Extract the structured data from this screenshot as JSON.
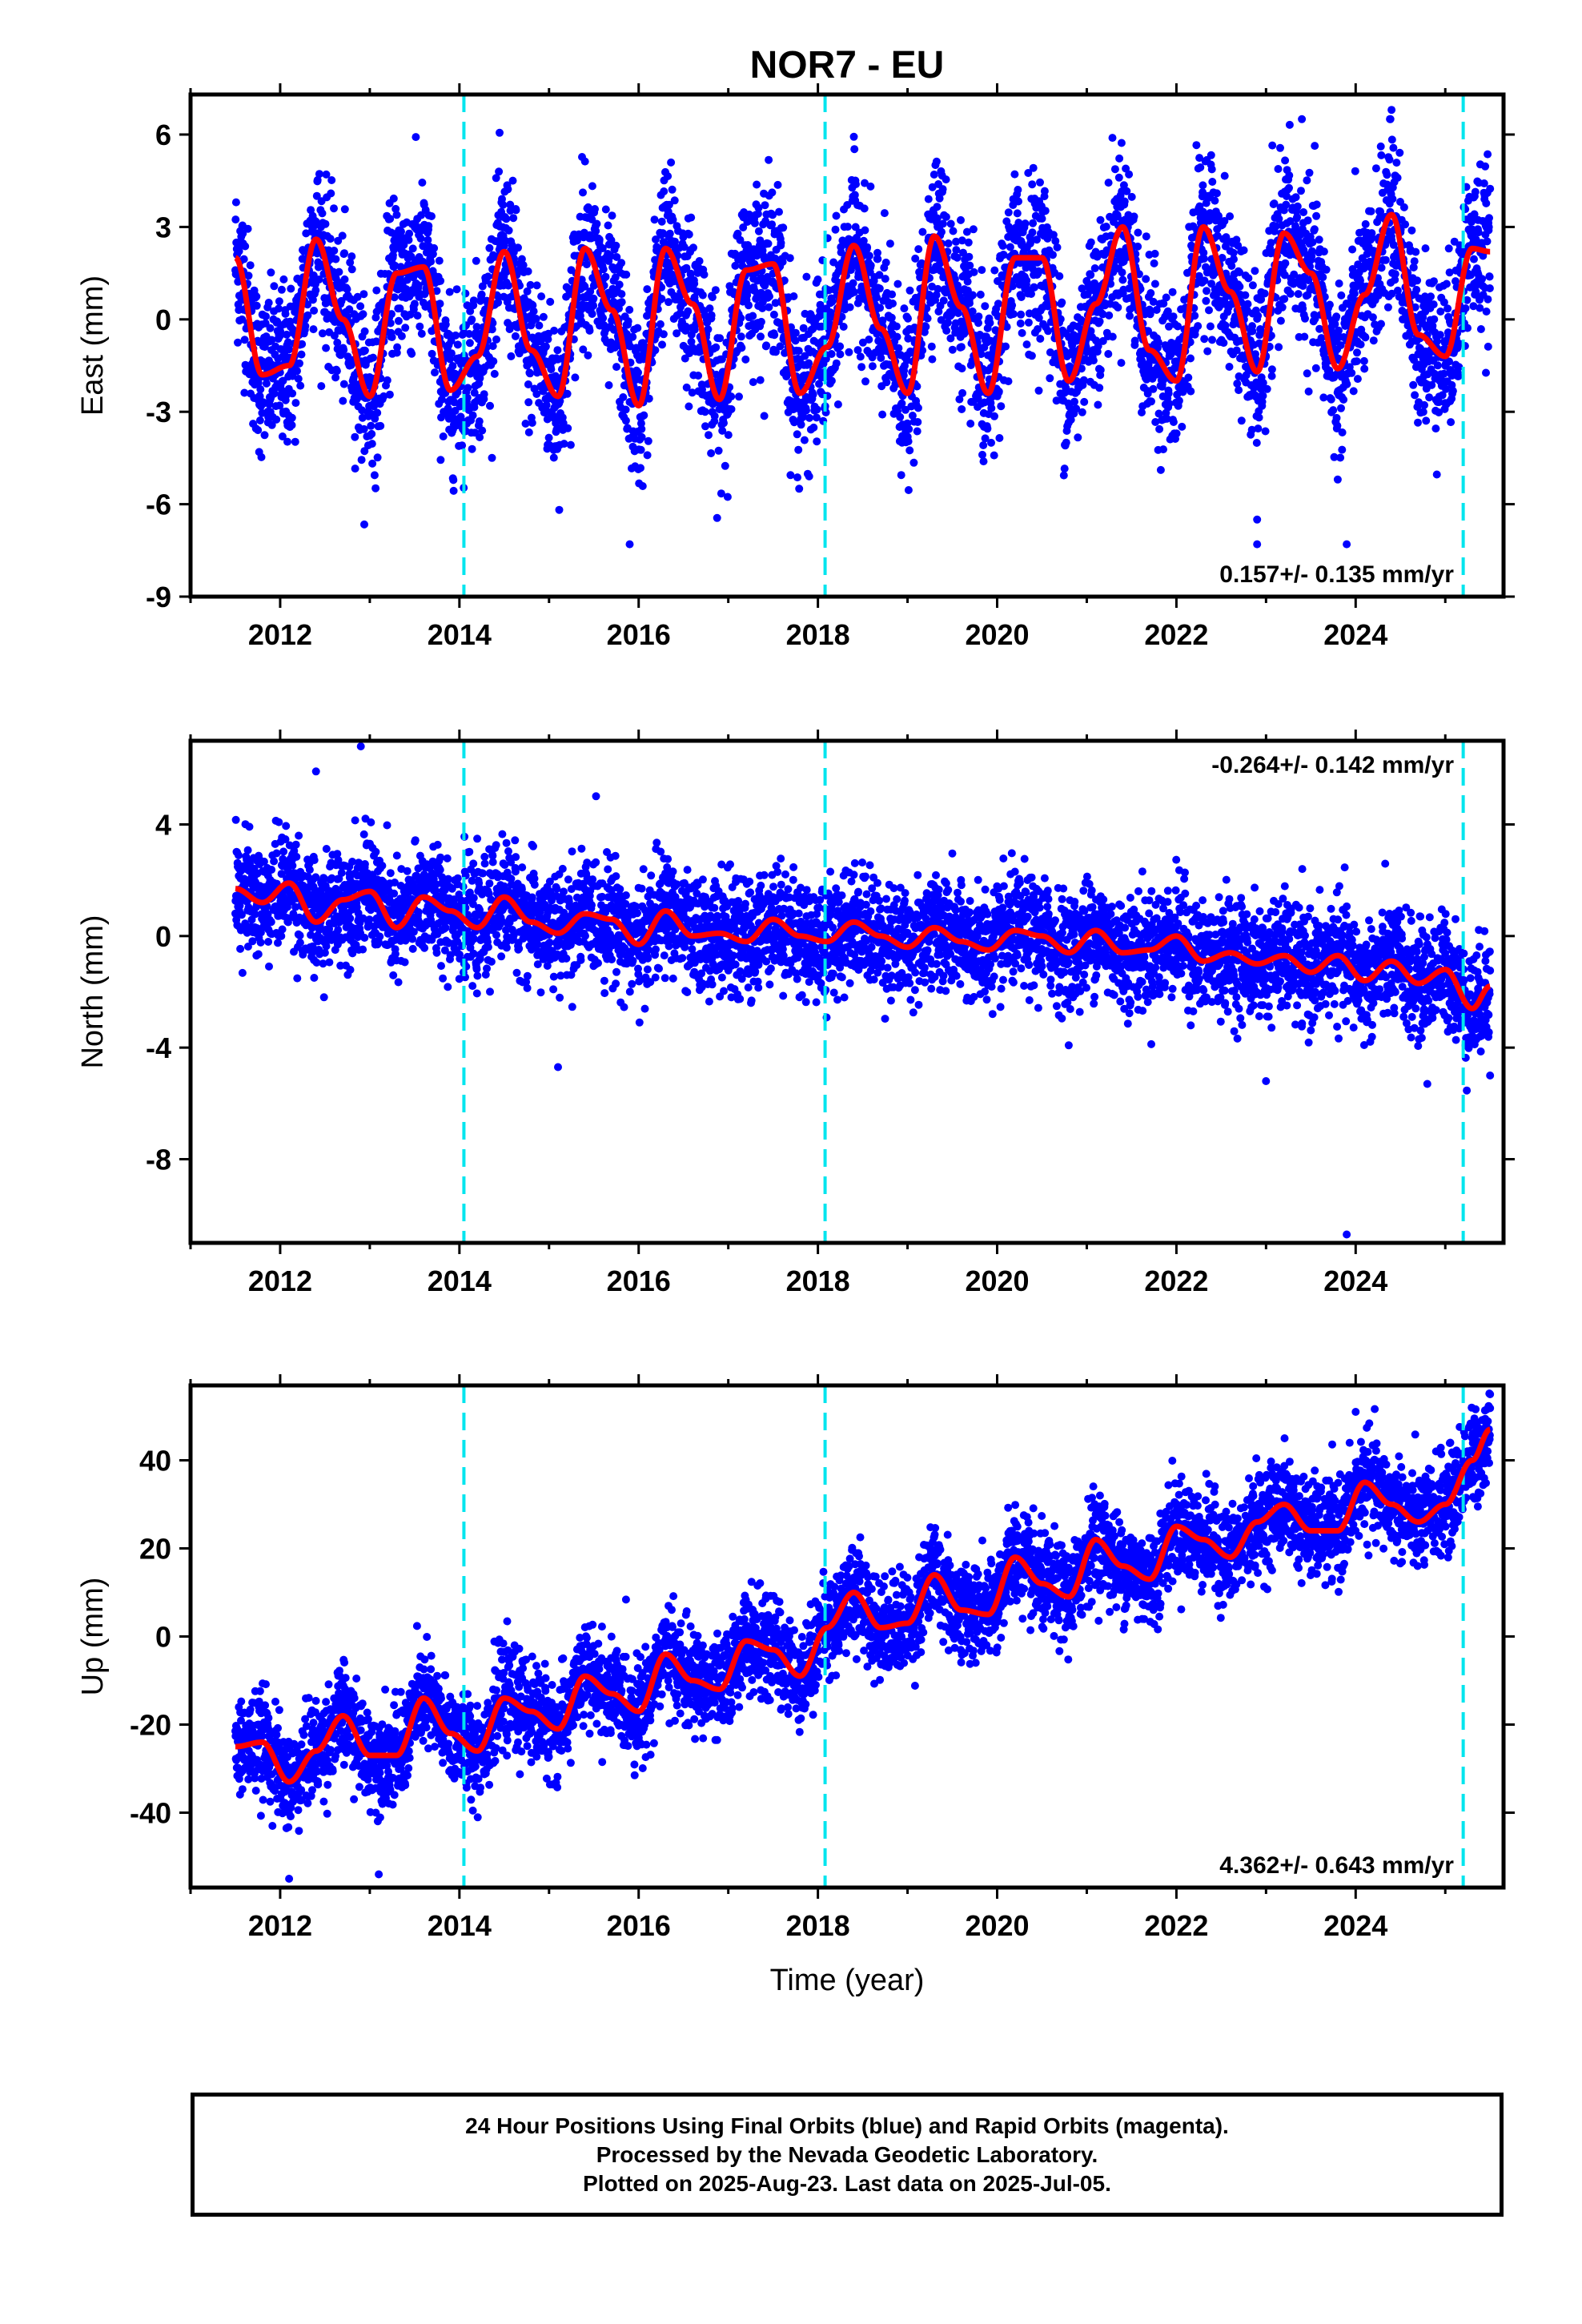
{
  "title": "NOR7 - EU",
  "xlabel": "Time (year)",
  "colors": {
    "points": "#0000ff",
    "fit": "#ff0000",
    "breaks": "#00e5ee",
    "frame": "#000000"
  },
  "footer": {
    "line1": "24 Hour Positions Using Final Orbits (blue) and Rapid Orbits (magenta).",
    "line2": "Processed by the Nevada Geodetic Laboratory.",
    "line3": "Plotted on 2025-Aug-23. Last data on 2025-Jul-05."
  },
  "chart_data": [
    {
      "type": "scatter",
      "name": "east",
      "ylabel": "East (mm)",
      "xlim": [
        2011.0,
        2025.65
      ],
      "ylim": [
        -9,
        7.3
      ],
      "xticks": [
        "2012",
        "2014",
        "2016",
        "2018",
        "2020",
        "2022",
        "2024"
      ],
      "yticks": [
        "6",
        "3",
        "0",
        "-3",
        "-6",
        "-9"
      ],
      "rate_label": "0.157+/- 0.135 mm/yr",
      "rate_position": "bottom-right",
      "equipment_changes": [
        2014.05,
        2018.08,
        2025.2
      ],
      "fit": {
        "x": [
          2011.5,
          2011.8,
          2012.1,
          2012.4,
          2012.7,
          2013.0,
          2013.3,
          2013.6,
          2013.9,
          2014.2,
          2014.5,
          2014.8,
          2015.1,
          2015.4,
          2015.7,
          2016.0,
          2016.3,
          2016.6,
          2016.9,
          2017.2,
          2017.5,
          2017.8,
          2018.1,
          2018.4,
          2018.7,
          2019.0,
          2019.3,
          2019.6,
          2019.9,
          2020.2,
          2020.5,
          2020.8,
          2021.1,
          2021.4,
          2021.7,
          2022.0,
          2022.3,
          2022.6,
          2022.9,
          2023.2,
          2023.5,
          2023.8,
          2024.1,
          2024.4,
          2024.7,
          2025.0,
          2025.3,
          2025.5
        ],
        "y": [
          2.0,
          -1.8,
          -1.5,
          2.6,
          0.0,
          -2.5,
          1.5,
          1.7,
          -2.3,
          -1.2,
          2.2,
          -1.0,
          -2.5,
          2.3,
          0.3,
          -2.8,
          2.3,
          0.5,
          -2.6,
          1.6,
          1.8,
          -2.4,
          -0.9,
          2.4,
          -0.3,
          -2.4,
          2.7,
          0.4,
          -2.4,
          2.0,
          2.0,
          -2.0,
          0.5,
          3.0,
          -1.0,
          -2.0,
          3.0,
          0.9,
          -1.7,
          2.8,
          1.5,
          -1.6,
          0.8,
          3.4,
          -0.5,
          -1.2,
          2.3,
          2.2
        ]
      },
      "points": {
        "noise": 1.3,
        "outliers": [
          [
            2015.9,
            -7.3
          ],
          [
            2022.9,
            -7.3
          ],
          [
            2022.9,
            -6.5
          ],
          [
            2023.9,
            -7.3
          ],
          [
            2023.8,
            -5.2
          ],
          [
            2024.4,
            6.8
          ],
          [
            2023.4,
            6.5
          ]
        ]
      }
    },
    {
      "type": "scatter",
      "name": "north",
      "ylabel": "North (mm)",
      "xlim": [
        2011.0,
        2025.65
      ],
      "ylim": [
        -11,
        7
      ],
      "xticks": [
        "2012",
        "2014",
        "2016",
        "2018",
        "2020",
        "2022",
        "2024"
      ],
      "yticks": [
        "4",
        "0",
        "-4",
        "-8"
      ],
      "rate_label": "-0.264+/- 0.142 mm/yr",
      "rate_position": "top-right",
      "equipment_changes": [
        2014.05,
        2018.08,
        2025.2
      ],
      "fit": {
        "x": [
          2011.5,
          2011.8,
          2012.1,
          2012.4,
          2012.7,
          2013.0,
          2013.3,
          2013.6,
          2013.9,
          2014.2,
          2014.5,
          2014.8,
          2015.1,
          2015.4,
          2015.7,
          2016.0,
          2016.3,
          2016.6,
          2016.9,
          2017.2,
          2017.5,
          2017.8,
          2018.1,
          2018.4,
          2018.7,
          2019.0,
          2019.3,
          2019.6,
          2019.9,
          2020.2,
          2020.5,
          2020.8,
          2021.1,
          2021.4,
          2021.7,
          2022.0,
          2022.3,
          2022.6,
          2022.9,
          2023.2,
          2023.5,
          2023.8,
          2024.1,
          2024.4,
          2024.7,
          2025.0,
          2025.3,
          2025.5
        ],
        "y": [
          1.7,
          1.2,
          1.9,
          0.5,
          1.3,
          1.6,
          0.3,
          1.4,
          0.9,
          0.3,
          1.4,
          0.5,
          0.1,
          0.8,
          0.6,
          -0.3,
          0.9,
          0.0,
          0.1,
          -0.2,
          0.6,
          0.0,
          -0.2,
          0.5,
          0.0,
          -0.4,
          0.3,
          -0.2,
          -0.5,
          0.2,
          0.0,
          -0.6,
          0.2,
          -0.6,
          -0.5,
          0.0,
          -0.9,
          -0.6,
          -1.0,
          -0.7,
          -1.3,
          -0.7,
          -1.6,
          -0.9,
          -1.7,
          -1.2,
          -2.6,
          -1.8
        ]
      },
      "points": {
        "noise": 1.0,
        "outliers": [
          [
            2012.9,
            6.8
          ],
          [
            2012.4,
            5.9
          ],
          [
            2015.1,
            -4.7
          ],
          [
            2023.9,
            -10.7
          ],
          [
            2023.0,
            -5.2
          ],
          [
            2024.8,
            -5.3
          ],
          [
            2025.5,
            -5.0
          ]
        ]
      }
    },
    {
      "type": "scatter",
      "name": "up",
      "ylabel": "Up (mm)",
      "xlim": [
        2011.0,
        2025.65
      ],
      "ylim": [
        -57,
        57
      ],
      "xticks": [
        "2012",
        "2014",
        "2016",
        "2018",
        "2020",
        "2022",
        "2024"
      ],
      "yticks": [
        "40",
        "20",
        "0",
        "-20",
        "-40"
      ],
      "rate_label": "4.362+/- 0.643 mm/yr",
      "rate_position": "bottom-right",
      "equipment_changes": [
        2014.05,
        2018.08,
        2025.2
      ],
      "fit": {
        "x": [
          2011.5,
          2011.8,
          2012.1,
          2012.4,
          2012.7,
          2013.0,
          2013.3,
          2013.6,
          2013.9,
          2014.2,
          2014.5,
          2014.8,
          2015.1,
          2015.4,
          2015.7,
          2016.0,
          2016.3,
          2016.6,
          2016.9,
          2017.2,
          2017.5,
          2017.8,
          2018.1,
          2018.4,
          2018.7,
          2019.0,
          2019.3,
          2019.6,
          2019.9,
          2020.2,
          2020.5,
          2020.8,
          2021.1,
          2021.4,
          2021.7,
          2022.0,
          2022.3,
          2022.6,
          2022.9,
          2023.2,
          2023.5,
          2023.8,
          2024.1,
          2024.4,
          2024.7,
          2025.0,
          2025.3,
          2025.5
        ],
        "y": [
          -25.0,
          -24.0,
          -33.0,
          -26.0,
          -18.0,
          -27.0,
          -27.0,
          -14.0,
          -22.0,
          -26.0,
          -14.0,
          -17.0,
          -21.0,
          -9.0,
          -13.0,
          -17.0,
          -4.0,
          -10.0,
          -12.0,
          -1.0,
          -3.0,
          -9.0,
          2.0,
          10.0,
          2.0,
          3.0,
          14.0,
          6.0,
          5.0,
          18.0,
          12.0,
          9.0,
          22.0,
          16.0,
          13.0,
          25.0,
          22.0,
          18.0,
          26.0,
          30.0,
          24.0,
          24.0,
          35.0,
          30.0,
          26.0,
          30.0,
          40.0,
          47.0
        ]
      },
      "points": {
        "noise": 5.5,
        "outliers": [
          [
            2013.1,
            -54.0
          ],
          [
            2012.1,
            -55.0
          ],
          [
            2025.5,
            55.0
          ],
          [
            2024.0,
            51.0
          ]
        ]
      }
    }
  ]
}
